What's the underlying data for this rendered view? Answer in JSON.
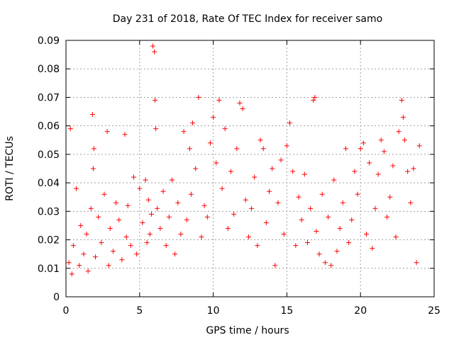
{
  "chart_data": {
    "type": "scatter",
    "title": "Day 231 of 2018, Rate Of TEC Index for receiver samo",
    "xlabel": "GPS time / hours",
    "ylabel": "ROTI / TECUs",
    "xlim": [
      0,
      25
    ],
    "ylim": [
      0,
      0.09
    ],
    "grid": true,
    "marker": "+",
    "color": "#ff0000",
    "x_ticks": [
      0,
      5,
      10,
      15,
      20,
      25
    ],
    "x_tick_labels": [
      "0",
      "5",
      "10",
      "15",
      "20",
      "25"
    ],
    "y_ticks": [
      0,
      0.01,
      0.02,
      0.03,
      0.04,
      0.05,
      0.06,
      0.07,
      0.08,
      0.09
    ],
    "y_tick_labels": [
      "0",
      "0.01",
      "0.02",
      "0.03",
      "0.04",
      "0.05",
      "0.06",
      "0.07",
      "0.08",
      "0.09"
    ],
    "series": [
      {
        "name": "ROTI",
        "x": [
          0.2,
          0.3,
          0.4,
          0.5,
          0.7,
          0.9,
          1.0,
          1.2,
          1.4,
          1.5,
          1.7,
          1.8,
          1.85,
          1.9,
          2.0,
          2.2,
          2.4,
          2.6,
          2.8,
          2.9,
          3.0,
          3.2,
          3.4,
          3.6,
          3.8,
          4.0,
          4.1,
          4.2,
          4.4,
          4.6,
          4.8,
          5.0,
          5.2,
          5.4,
          5.5,
          5.6,
          5.7,
          5.8,
          5.9,
          6.0,
          6.05,
          6.1,
          6.2,
          6.4,
          6.6,
          6.8,
          7.0,
          7.2,
          7.4,
          7.6,
          7.8,
          8.0,
          8.2,
          8.4,
          8.5,
          8.6,
          8.8,
          9.0,
          9.2,
          9.4,
          9.6,
          9.8,
          10.0,
          10.2,
          10.4,
          10.6,
          10.8,
          11.0,
          11.2,
          11.4,
          11.6,
          11.8,
          12.0,
          12.2,
          12.4,
          12.6,
          12.8,
          13.0,
          13.2,
          13.4,
          13.6,
          13.8,
          14.0,
          14.2,
          14.4,
          14.6,
          14.8,
          15.0,
          15.2,
          15.4,
          15.6,
          15.8,
          16.0,
          16.2,
          16.4,
          16.6,
          16.8,
          16.9,
          17.0,
          17.2,
          17.4,
          17.6,
          17.8,
          18.0,
          18.2,
          18.4,
          18.6,
          18.8,
          19.0,
          19.2,
          19.4,
          19.6,
          19.8,
          20.0,
          20.2,
          20.4,
          20.6,
          20.8,
          21.0,
          21.2,
          21.4,
          21.6,
          21.8,
          22.0,
          22.2,
          22.4,
          22.6,
          22.8,
          22.9,
          23.0,
          23.2,
          23.4,
          23.6,
          23.8,
          24.0
        ],
        "y": [
          0.012,
          0.059,
          0.008,
          0.018,
          0.038,
          0.011,
          0.025,
          0.015,
          0.022,
          0.009,
          0.031,
          0.064,
          0.045,
          0.052,
          0.014,
          0.028,
          0.019,
          0.036,
          0.058,
          0.011,
          0.024,
          0.016,
          0.033,
          0.027,
          0.013,
          0.057,
          0.021,
          0.032,
          0.018,
          0.042,
          0.015,
          0.038,
          0.026,
          0.041,
          0.019,
          0.034,
          0.022,
          0.029,
          0.088,
          0.086,
          0.069,
          0.059,
          0.031,
          0.024,
          0.037,
          0.018,
          0.028,
          0.041,
          0.015,
          0.033,
          0.022,
          0.058,
          0.027,
          0.052,
          0.036,
          0.061,
          0.045,
          0.07,
          0.021,
          0.032,
          0.028,
          0.054,
          0.063,
          0.047,
          0.069,
          0.038,
          0.059,
          0.024,
          0.044,
          0.029,
          0.052,
          0.068,
          0.066,
          0.034,
          0.021,
          0.031,
          0.042,
          0.018,
          0.055,
          0.052,
          0.026,
          0.037,
          0.045,
          0.011,
          0.033,
          0.048,
          0.022,
          0.053,
          0.061,
          0.044,
          0.018,
          0.035,
          0.027,
          0.043,
          0.019,
          0.031,
          0.069,
          0.07,
          0.023,
          0.015,
          0.036,
          0.012,
          0.028,
          0.011,
          0.041,
          0.016,
          0.024,
          0.033,
          0.052,
          0.019,
          0.027,
          0.044,
          0.036,
          0.052,
          0.054,
          0.022,
          0.047,
          0.017,
          0.031,
          0.043,
          0.055,
          0.051,
          0.028,
          0.035,
          0.046,
          0.021,
          0.058,
          0.069,
          0.063,
          0.055,
          0.044,
          0.033,
          0.045,
          0.012,
          0.053
        ]
      }
    ]
  }
}
